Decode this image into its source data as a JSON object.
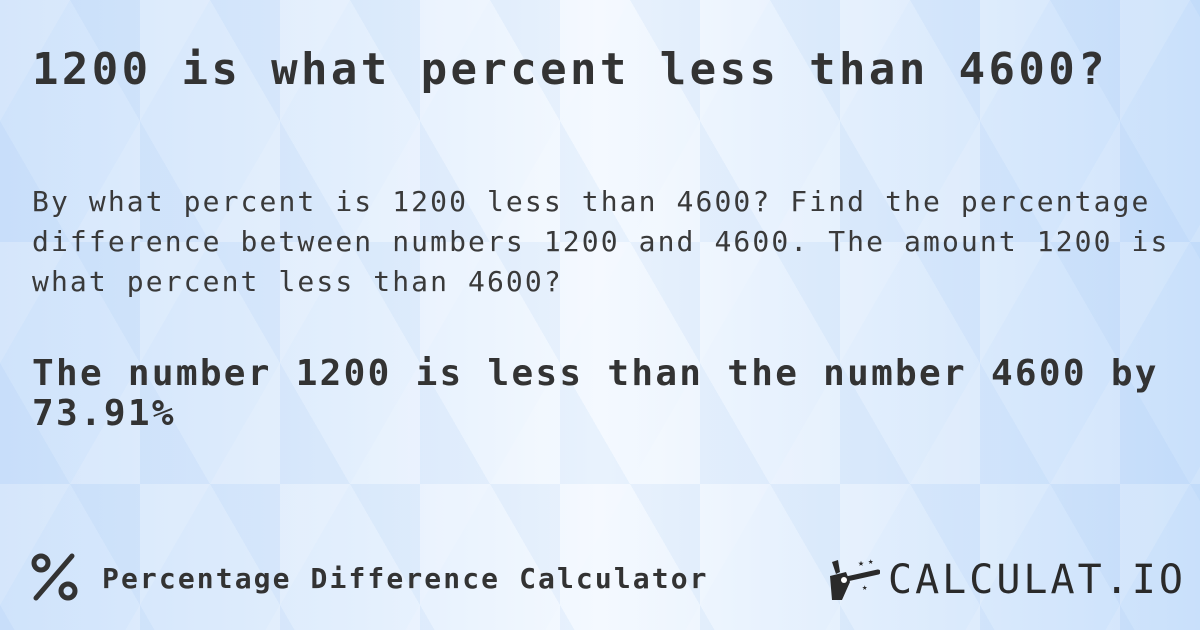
{
  "title": "1200 is what percent less than 4600?",
  "description": "By what percent is 1200 less than 4600? Find the percentage difference between numbers 1200 and 4600. The amount 1200 is what percent less than 4600?",
  "answer": "The number 1200 is less than the number 4600 by 73.91%",
  "footer": {
    "icon": "percent-icon",
    "label": "Percentage Difference Calculator"
  },
  "logo": {
    "text": "CALCULAT.IO",
    "icon": "magic-hand-wand-icon"
  }
}
